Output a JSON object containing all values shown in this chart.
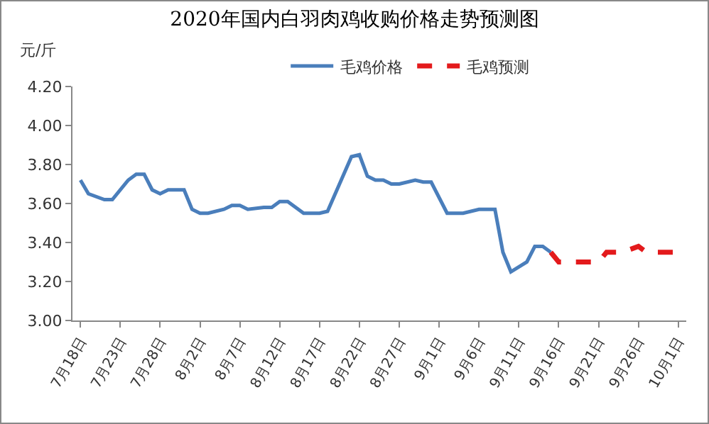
{
  "chart_data": {
    "type": "line",
    "title": "2020年国内白羽肉鸡收购价格走势预测图",
    "ylabel": "元/斤",
    "series": [
      {
        "name": "毛鸡价格",
        "color": "#4a7ebb",
        "line_style": "solid",
        "x": [
          "--07-18",
          "--07-19",
          "--07-21",
          "--07-22",
          "--07-24",
          "--07-25",
          "--07-26",
          "--07-27",
          "--07-28",
          "--07-29",
          "--07-31",
          "--08-01",
          "--08-02",
          "--08-03",
          "--08-05",
          "--08-06",
          "--08-07",
          "--08-08",
          "--08-10",
          "--08-11",
          "--08-12",
          "--08-13",
          "--08-15",
          "--08-17",
          "--08-18",
          "--08-21",
          "--08-22",
          "--08-23",
          "--08-24",
          "--08-25",
          "--08-26",
          "--08-27",
          "--08-29",
          "--08-30",
          "--08-31",
          "--09-02",
          "--09-04",
          "--09-06",
          "--09-08",
          "--09-09",
          "--09-10",
          "--09-12",
          "--09-13",
          "--09-14",
          "--09-15"
        ],
        "values": [
          3.72,
          3.65,
          3.62,
          3.62,
          3.72,
          3.75,
          3.75,
          3.67,
          3.65,
          3.67,
          3.67,
          3.57,
          3.55,
          3.55,
          3.57,
          3.59,
          3.59,
          3.57,
          3.58,
          3.58,
          3.61,
          3.61,
          3.55,
          3.55,
          3.56,
          3.84,
          3.85,
          3.74,
          3.72,
          3.72,
          3.7,
          3.7,
          3.72,
          3.71,
          3.71,
          3.55,
          3.55,
          3.57,
          3.57,
          3.35,
          3.25,
          3.3,
          3.38,
          3.38,
          3.35
        ]
      },
      {
        "name": "毛鸡预测",
        "color": "#e31a1c",
        "line_style": "dashed",
        "x": [
          "--09-15",
          "--09-16",
          "--09-21",
          "--09-22",
          "--09-24",
          "--09-26",
          "--09-27",
          "--10-01"
        ],
        "values": [
          3.35,
          3.3,
          3.3,
          3.35,
          3.35,
          3.38,
          3.35,
          3.35
        ]
      }
    ],
    "xlim": [
      "--07-17",
      "--10-02"
    ],
    "xticks": [
      {
        "value": "--07-18",
        "label": "7月18日"
      },
      {
        "value": "--07-23",
        "label": "7月23日"
      },
      {
        "value": "--07-28",
        "label": "7月28日"
      },
      {
        "value": "--08-02",
        "label": "8月2日"
      },
      {
        "value": "--08-07",
        "label": "8月7日"
      },
      {
        "value": "--08-12",
        "label": "8月12日"
      },
      {
        "value": "--08-17",
        "label": "8月17日"
      },
      {
        "value": "--08-22",
        "label": "8月22日"
      },
      {
        "value": "--08-27",
        "label": "8月27日"
      },
      {
        "value": "--09-01",
        "label": "9月1日"
      },
      {
        "value": "--09-06",
        "label": "9月6日"
      },
      {
        "value": "--09-11",
        "label": "9月11日"
      },
      {
        "value": "--09-16",
        "label": "9月16日"
      },
      {
        "value": "--09-21",
        "label": "9月21日"
      },
      {
        "value": "--09-26",
        "label": "9月26日"
      },
      {
        "value": "--10-01",
        "label": "10月1日"
      }
    ],
    "ylim": [
      3.0,
      4.2
    ],
    "yticks": [
      {
        "value": 3.0,
        "label": "3.00"
      },
      {
        "value": 3.2,
        "label": "3.20"
      },
      {
        "value": 3.4,
        "label": "3.40"
      },
      {
        "value": 3.6,
        "label": "3.60"
      },
      {
        "value": 3.8,
        "label": "3.80"
      },
      {
        "value": 4.0,
        "label": "4.00"
      },
      {
        "value": 4.2,
        "label": "4.20"
      }
    ],
    "grid": false,
    "legend": "top",
    "marker": "none"
  }
}
